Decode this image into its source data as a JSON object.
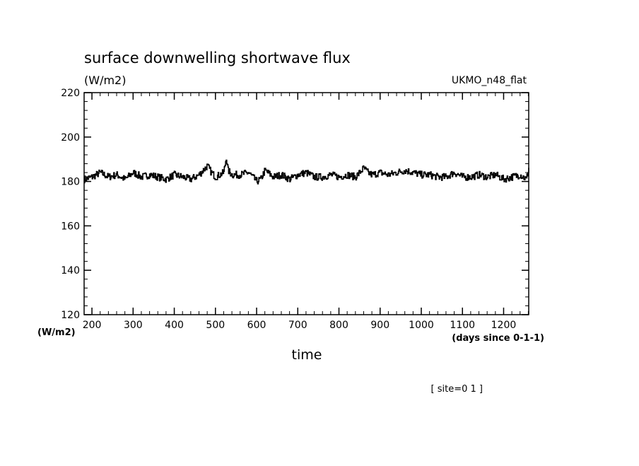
{
  "chart_data": {
    "type": "line",
    "title": "surface downwelling shortwave flux",
    "units_label": "(W/m2)",
    "model_label": "UKMO_n48_flat",
    "xlabel": "time",
    "x_units_label": "(days since 0-1-1)",
    "y_axis_units_label": "(W/m2)",
    "footer_label": "[ site=0 1 ]",
    "xlim": [
      181,
      1261
    ],
    "ylim": [
      120,
      220
    ],
    "x_ticks": [
      200,
      300,
      400,
      500,
      600,
      700,
      800,
      900,
      1000,
      1100,
      1200
    ],
    "y_ticks": [
      120,
      140,
      160,
      180,
      200,
      220
    ],
    "x_minor_step": 20,
    "y_minor_step": 4,
    "grid": false,
    "legend": "none",
    "line_color": "#000000",
    "series": [
      {
        "x": [
          181,
          200,
          220,
          240,
          260,
          280,
          300,
          320,
          340,
          360,
          380,
          400,
          420,
          440,
          460,
          480,
          490,
          500,
          520,
          526,
          530,
          540,
          560,
          580,
          600,
          610,
          620,
          640,
          660,
          680,
          700,
          720,
          740,
          760,
          780,
          800,
          820,
          840,
          860,
          870,
          880,
          900,
          920,
          940,
          960,
          980,
          1000,
          1020,
          1040,
          1060,
          1080,
          1100,
          1120,
          1140,
          1160,
          1180,
          1200,
          1220,
          1240,
          1255,
          1261
        ],
        "y": [
          181,
          182,
          184,
          182,
          183,
          181,
          184,
          182,
          183,
          182,
          181,
          183,
          182,
          181,
          183,
          187,
          184,
          182,
          184,
          191,
          185,
          183,
          183,
          184,
          180,
          181,
          185,
          182,
          183,
          181,
          183,
          184,
          182,
          182,
          183,
          182,
          183,
          182,
          186,
          184,
          183,
          184,
          183,
          184,
          185,
          184,
          183,
          183,
          182,
          182,
          184,
          182,
          182,
          183,
          182,
          183,
          181,
          182,
          183,
          181,
          186
        ]
      }
    ]
  }
}
